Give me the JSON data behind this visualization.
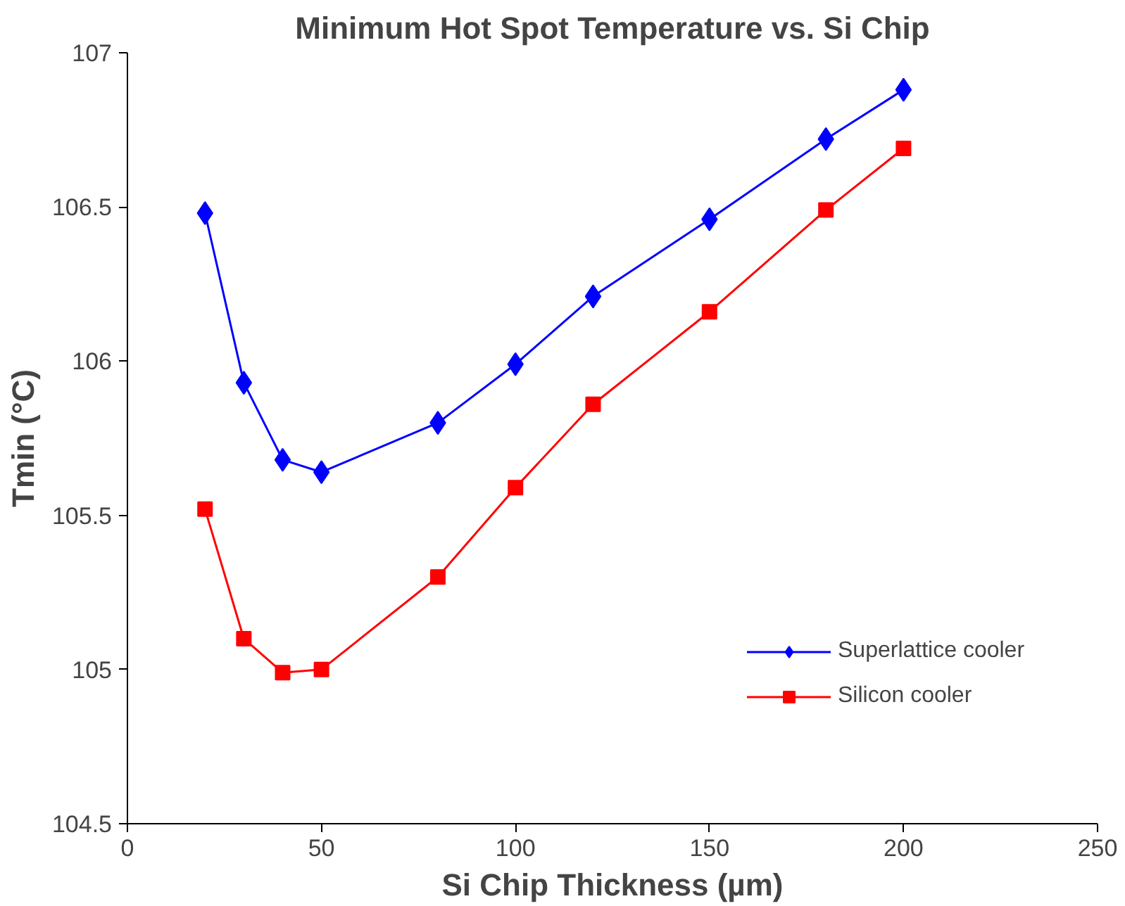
{
  "chart_data": {
    "type": "line",
    "title": "Minimum Hot Spot Temperature vs. Si Chip",
    "xlabel": "Si Chip Thickness (µm)",
    "ylabel": "Tmin (°C)",
    "x": [
      20,
      30,
      40,
      50,
      80,
      100,
      120,
      150,
      180,
      200
    ],
    "series": [
      {
        "name": "Superlattice cooler",
        "color": "#0000ff",
        "marker": "diamond",
        "values": [
          106.48,
          105.93,
          105.68,
          105.64,
          105.8,
          105.99,
          106.21,
          106.46,
          106.72,
          106.88
        ]
      },
      {
        "name": "Silicon cooler",
        "color": "#ff0000",
        "marker": "square",
        "values": [
          105.52,
          105.1,
          104.99,
          105.0,
          105.3,
          105.59,
          105.86,
          106.16,
          106.49,
          106.69
        ]
      }
    ],
    "xlim": [
      0,
      250
    ],
    "xticks": [
      0,
      50,
      100,
      150,
      200,
      250
    ],
    "ylim": [
      104.5,
      107
    ],
    "yticks": [
      104.5,
      105,
      105.5,
      106,
      106.5,
      107
    ],
    "grid": false,
    "legend": "right",
    "line_style": "solid"
  }
}
